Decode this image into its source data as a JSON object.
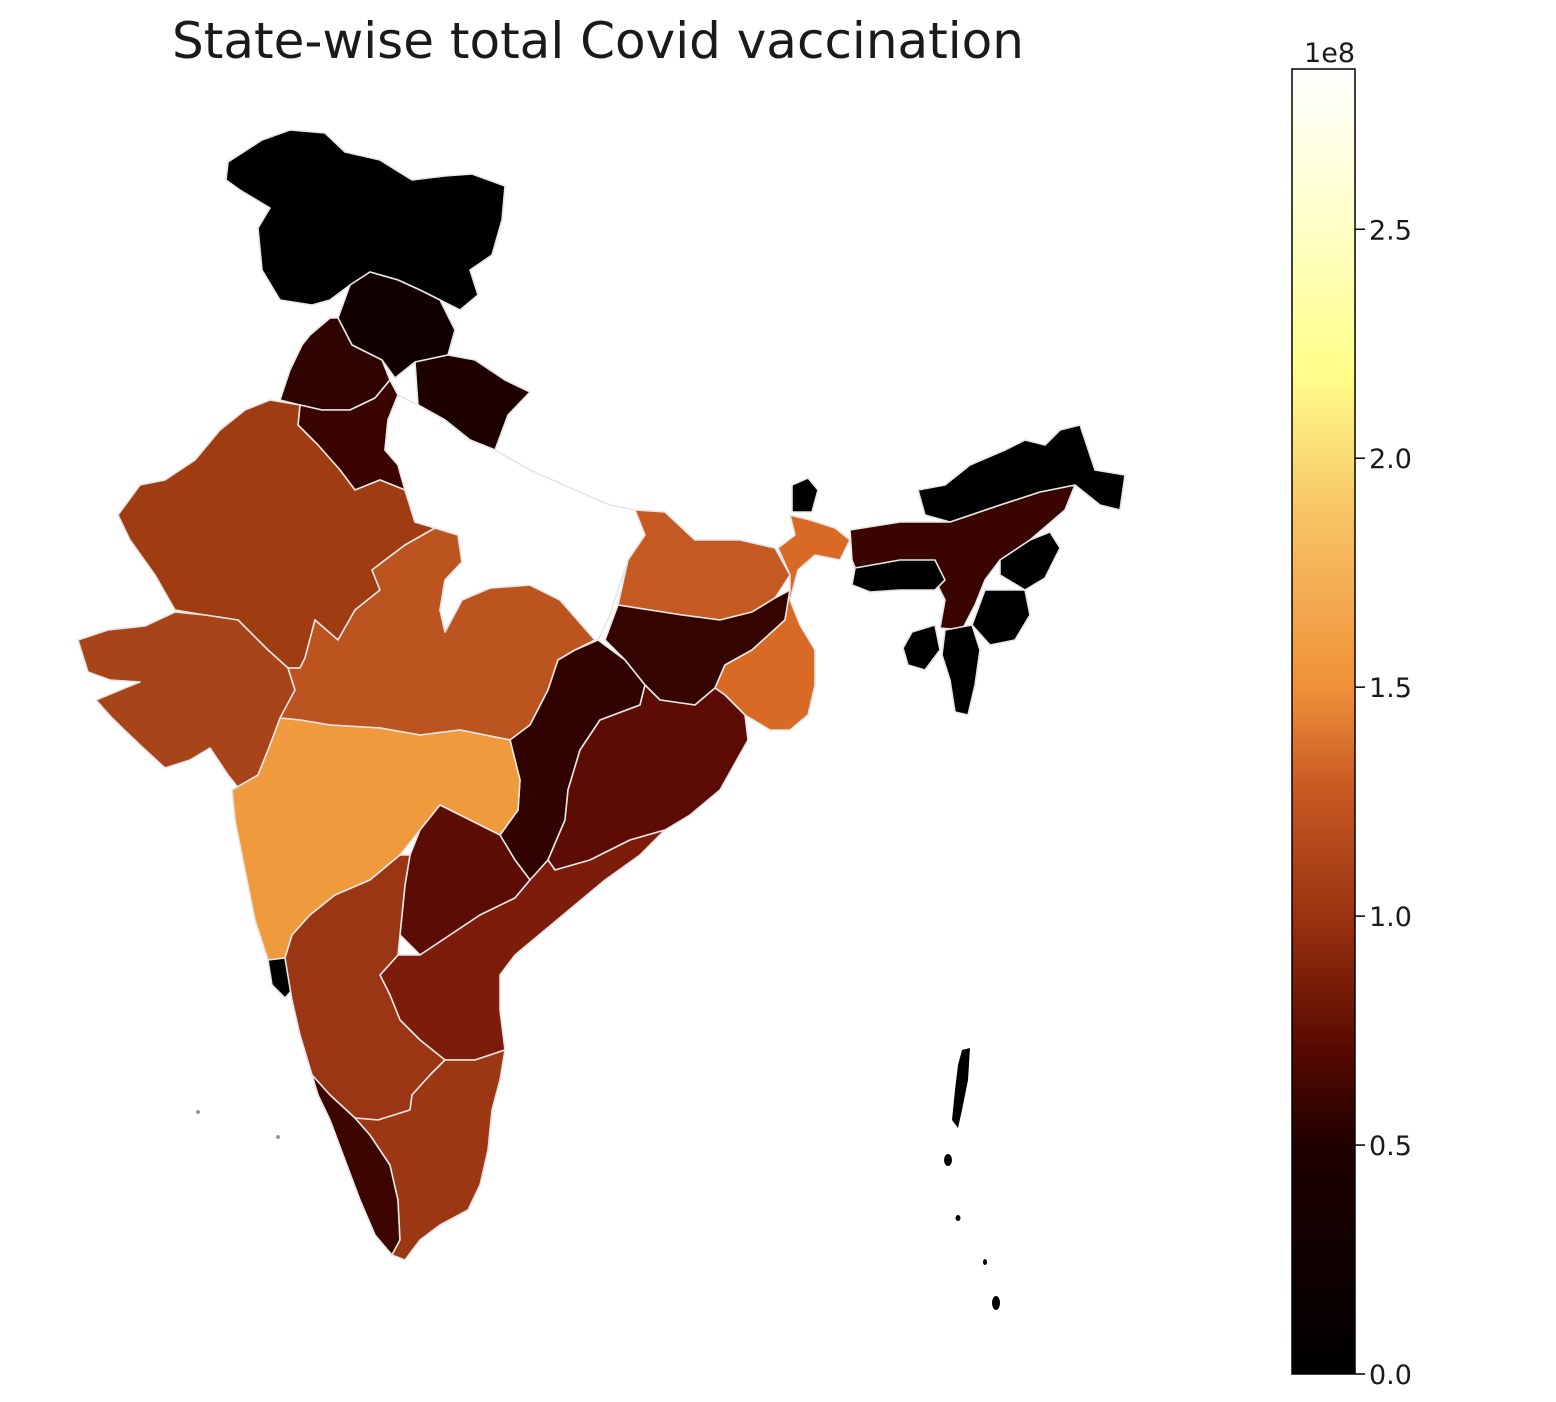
{
  "title": "State-wise total Covid vaccination",
  "colorbar": {
    "colormap": "afmhot",
    "min": 0,
    "max": 2.85,
    "multiplier_label": "1e8",
    "ticks": [
      {
        "value": 0.0,
        "label": "0.0"
      },
      {
        "value": 0.5,
        "label": "0.5"
      },
      {
        "value": 1.0,
        "label": "1.0"
      },
      {
        "value": 1.5,
        "label": "1.5"
      },
      {
        "value": 2.0,
        "label": "2.0"
      },
      {
        "value": 2.5,
        "label": "2.5"
      }
    ]
  },
  "colors": {
    "border": "#e6e6e6",
    "background": "#ffffff"
  }
}
